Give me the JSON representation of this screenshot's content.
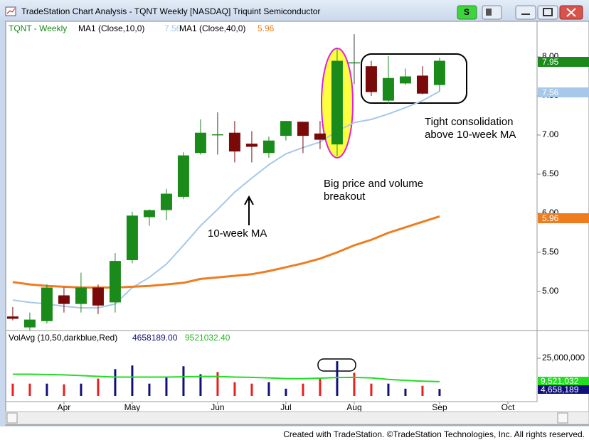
{
  "window": {
    "title": "TradeStation Chart Analysis - TQNT Weekly [NASDAQ] Triquint Semiconductor",
    "button": "S"
  },
  "footer": "Created with TradeStation. ©TradeStation Technologies, Inc. All rights reserved.",
  "chart_data": [
    {
      "type": "candlestick",
      "title": "TQNT - Weekly",
      "categories": [
        null,
        null,
        null,
        null,
        null,
        null,
        null,
        null,
        null,
        null,
        null,
        null,
        null,
        null,
        null,
        null,
        null,
        null,
        null,
        null,
        null,
        null,
        null,
        null,
        null,
        null
      ],
      "open": [
        4.68,
        4.54,
        4.62,
        4.95,
        4.84,
        5.05,
        4.86,
        5.4,
        5.95,
        6.04,
        6.21,
        6.77,
        7.01,
        7.03,
        6.89,
        6.77,
        6.99,
        7.17,
        7.02,
        6.88,
        7.93,
        7.88,
        7.44,
        7.66,
        7.76,
        7.64
      ],
      "high": [
        4.8,
        4.73,
        5.09,
        5.05,
        5.24,
        5.09,
        5.49,
        6.02,
        6.05,
        6.31,
        6.78,
        7.2,
        7.29,
        7.18,
        7.05,
        6.98,
        7.18,
        7.17,
        7.18,
        8.11,
        8.29,
        7.95,
        8.01,
        7.85,
        7.88,
        7.99
      ],
      "low": [
        4.63,
        4.5,
        4.59,
        4.73,
        4.73,
        4.71,
        4.73,
        5.36,
        5.84,
        5.91,
        6.18,
        6.75,
        6.75,
        6.65,
        6.65,
        6.71,
        6.93,
        6.77,
        6.82,
        6.73,
        7.65,
        7.5,
        7.4,
        7.64,
        7.52,
        7.56
      ],
      "close": [
        4.65,
        4.64,
        5.05,
        4.84,
        5.05,
        4.82,
        5.39,
        5.97,
        6.04,
        6.25,
        6.74,
        7.03,
        7.01,
        6.79,
        6.85,
        6.93,
        7.18,
        6.99,
        6.94,
        7.95,
        7.93,
        7.55,
        7.73,
        7.75,
        7.53,
        7.95
      ],
      "up_color": "#1a8a1a",
      "down_color": "#7a0a0a",
      "series": [
        {
          "name": "MA1 (Close,10,0)",
          "color": "#a6c8ea",
          "values": [
            4.89,
            4.86,
            4.84,
            4.81,
            4.79,
            4.79,
            4.84,
            5.05,
            5.18,
            5.35,
            5.59,
            5.84,
            6.05,
            6.27,
            6.45,
            6.62,
            6.76,
            6.84,
            6.91,
            7.05,
            7.16,
            7.2,
            7.27,
            7.35,
            7.44,
            7.56
          ]
        },
        {
          "name": "MA1 (Close,40,0)",
          "color": "#ee7d1f",
          "values": [
            5.12,
            5.09,
            5.07,
            5.06,
            5.05,
            5.05,
            5.05,
            5.06,
            5.07,
            5.09,
            5.11,
            5.16,
            5.18,
            5.2,
            5.22,
            5.26,
            5.31,
            5.36,
            5.42,
            5.5,
            5.59,
            5.66,
            5.75,
            5.82,
            5.89,
            5.96
          ]
        }
      ],
      "ylim": [
        4.5,
        8.45
      ],
      "yticks": [
        {
          "value": 5,
          "label": "5.00"
        },
        {
          "value": 5.5,
          "label": "5.50"
        },
        {
          "value": 6,
          "label": "6.00"
        },
        {
          "value": 6.5,
          "label": "6.50"
        },
        {
          "value": 7,
          "label": "7.00"
        },
        {
          "value": 7.5,
          "label": "7.50"
        },
        {
          "value": 8,
          "label": "8.00"
        }
      ],
      "xlim": [
        -0.33,
        30.71
      ],
      "xticks": [
        {
          "value": 3,
          "label": "Apr"
        },
        {
          "value": 7,
          "label": "May"
        },
        {
          "value": 12,
          "label": "Jun"
        },
        {
          "value": 16,
          "label": "Jul"
        },
        {
          "value": 20,
          "label": "Aug"
        },
        {
          "value": 25,
          "label": "Sep"
        },
        {
          "value": 29,
          "label": "Oct"
        }
      ],
      "annotations": [
        "Big price and volume",
        "breakout",
        "Tight consolidation",
        "above 10-week MA",
        "10-week MA"
      ]
    },
    {
      "type": "bar",
      "title": "VolAvg (10,50,darkblue,Red)",
      "categories": [
        null,
        null,
        null,
        null,
        null,
        null,
        null,
        null,
        null,
        null,
        null,
        null,
        null,
        null,
        null,
        null,
        null,
        null,
        null,
        null,
        null,
        null,
        null,
        null,
        null,
        null
      ],
      "values": [
        8170000,
        8170000,
        8170000,
        7690000,
        8170000,
        11540000,
        17790000,
        20190000,
        8170000,
        12980000,
        19710000,
        14420000,
        15870000,
        9130000,
        8170000,
        9130000,
        4810000,
        8170000,
        11540000,
        23080000,
        15380000,
        8170000,
        8170000,
        4810000,
        6730000,
        4658189
      ],
      "colors": [
        "#e8201c",
        "#e8201c",
        "#10107a",
        "#e8201c",
        "#10107a",
        "#e8201c",
        "#10107a",
        "#10107a",
        "#10107a",
        "#10107a",
        "#10107a",
        "#10107a",
        "#e8201c",
        "#e8201c",
        "#e8201c",
        "#10107a",
        "#10107a",
        "#e8201c",
        "#e8201c",
        "#10107a",
        "#e8201c",
        "#e8201c",
        "#10107a",
        "#10107a",
        "#e8201c",
        "#10107a"
      ],
      "series": [
        {
          "color": "#22dd22",
          "values": [
            14400000,
            14400000,
            14200000,
            14000000,
            13500000,
            13000000,
            12500000,
            12500000,
            12500000,
            12500000,
            12700000,
            12900000,
            12900000,
            12500000,
            12300000,
            12000000,
            11500000,
            11500000,
            11800000,
            12200000,
            12300000,
            12000000,
            11000000,
            10300000,
            9800000,
            9521032.4
          ]
        }
      ],
      "ylim": [
        0,
        42000000
      ],
      "yticks": [
        {
          "value": 25000000,
          "label": "25,000,000"
        }
      ],
      "legend_values": [
        {
          "value": 4658189,
          "label": "4658189.00"
        },
        {
          "value": 9521032.4,
          "label": "9521032.40"
        }
      ],
      "axis_labels": [
        {
          "value": 9521032.4,
          "label": "9,521,032"
        },
        {
          "value": 4658189,
          "label": "4,658,189"
        }
      ]
    }
  ]
}
